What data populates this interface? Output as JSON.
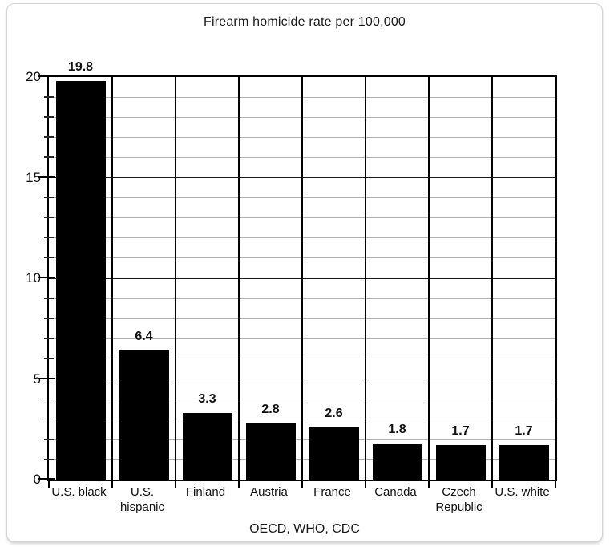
{
  "card": {
    "title": "Firearm homicide rate per 100,000",
    "source": "OECD, WHO, CDC"
  },
  "chart_data": {
    "type": "bar",
    "title": "Firearm homicide rate per 100,000",
    "xlabel": "OECD, WHO, CDC",
    "ylabel": "",
    "categories": [
      "U.S. black",
      "U.S. hispanic",
      "Finland",
      "Austria",
      "France",
      "Canada",
      "Czech Republic",
      "U.S. white"
    ],
    "values": [
      19.8,
      6.4,
      3.3,
      2.8,
      2.6,
      1.8,
      1.7,
      1.7
    ],
    "value_labels": [
      "19.8",
      "6.4",
      "3.3",
      "2.8",
      "2.6",
      "1.8",
      "1.7",
      "1.7"
    ],
    "ylim": [
      0,
      20
    ],
    "y_major_ticks": [
      0,
      5,
      10,
      15,
      20
    ],
    "y_minor_step": 1,
    "grid": "on",
    "legend": "none",
    "bar_color": "#000000",
    "major_grid_color": "#1a1a1a",
    "minor_grid_color": "#b3b3b3",
    "separator_color": "#000000"
  }
}
